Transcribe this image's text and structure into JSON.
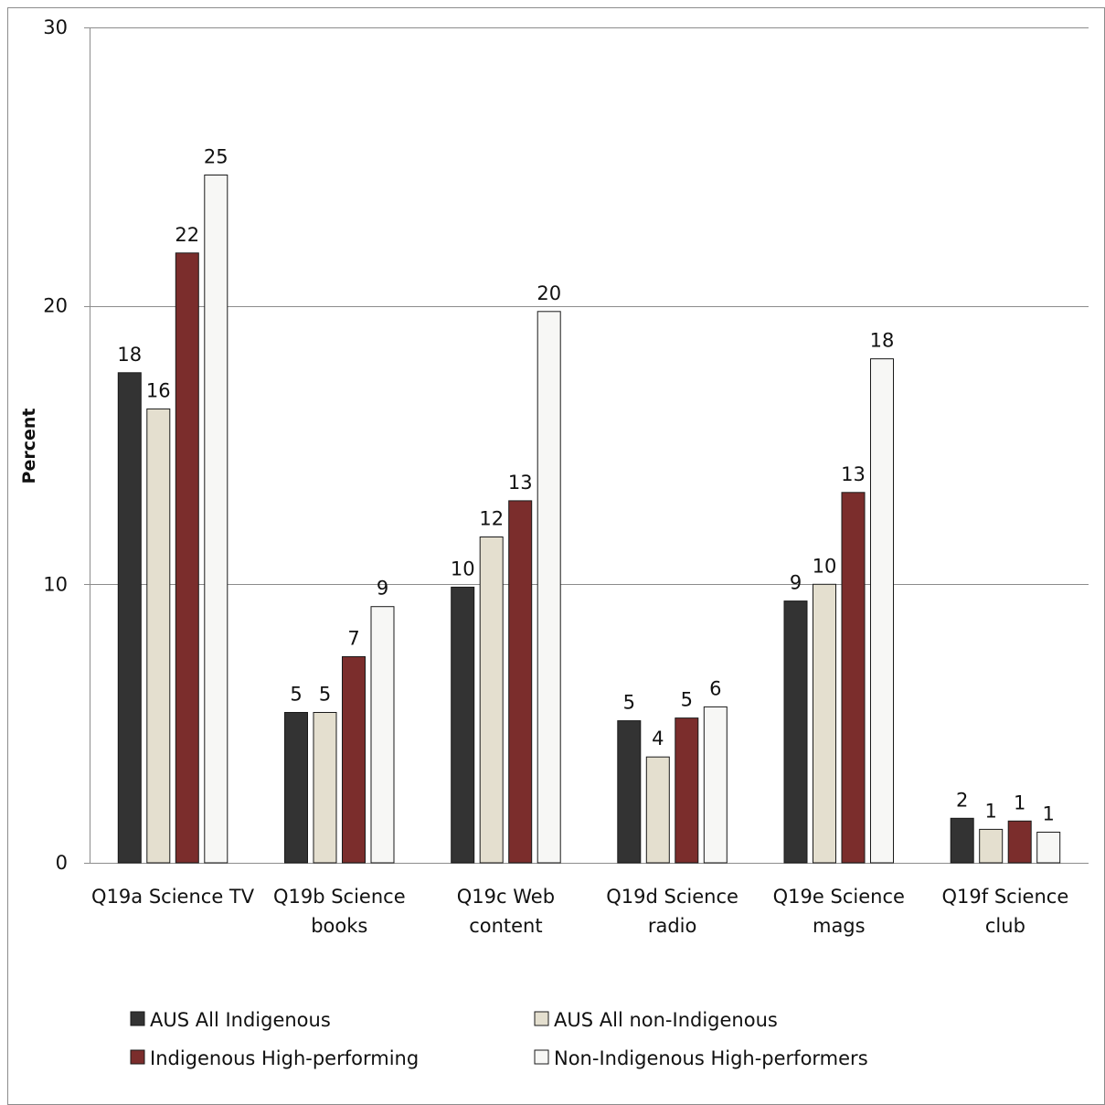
{
  "chart_data": {
    "type": "bar",
    "title": "",
    "xlabel": "",
    "ylabel": "Percent",
    "ylim": [
      0,
      30
    ],
    "yticks": [
      0,
      10,
      20,
      30
    ],
    "grid": true,
    "legend_position": "bottom",
    "categories": [
      [
        "Q19a Science TV"
      ],
      [
        "Q19b Science",
        "books"
      ],
      [
        "Q19c Web",
        "content"
      ],
      [
        "Q19d Science",
        "radio"
      ],
      [
        "Q19e Science",
        "mags"
      ],
      [
        "Q19f Science",
        "club"
      ]
    ],
    "series": [
      {
        "name": "AUS All Indigenous",
        "color": "#333333",
        "values": [
          17.6,
          5.4,
          9.9,
          5.1,
          9.4,
          1.6
        ],
        "labels": [
          "18",
          "5",
          "10",
          "5",
          "9",
          "2"
        ]
      },
      {
        "name": "AUS All non-Indigenous",
        "color": "#e4dfcf",
        "values": [
          16.3,
          5.4,
          11.7,
          3.8,
          10.0,
          1.2
        ],
        "labels": [
          "16",
          "5",
          "12",
          "4",
          "10",
          "1"
        ]
      },
      {
        "name": "Indigenous High-performing",
        "color": "#7b2d2c",
        "values": [
          21.9,
          7.4,
          13.0,
          5.2,
          13.3,
          1.5
        ],
        "labels": [
          "22",
          "7",
          "13",
          "5",
          "13",
          "1"
        ]
      },
      {
        "name": "Non-Indigenous High-performers",
        "color": "#f7f7f5",
        "values": [
          24.7,
          9.2,
          19.8,
          5.6,
          18.1,
          1.1
        ],
        "labels": [
          "25",
          "9",
          "20",
          "6",
          "18",
          "1"
        ]
      }
    ]
  }
}
